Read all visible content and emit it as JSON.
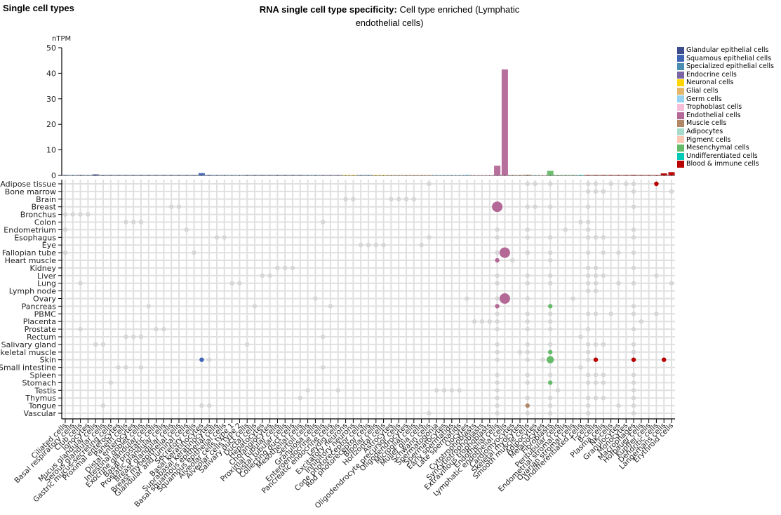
{
  "section_title": "Single cell types",
  "title": {
    "bold": "RNA single cell type specificity:",
    "rest": "Cell type enriched (Lymphatic endothelial cells)"
  },
  "legend": [
    {
      "label": "Glandular epithelial cells",
      "color": "#3d4b8f"
    },
    {
      "label": "Squamous epithelial cells",
      "color": "#3f65b4"
    },
    {
      "label": "Specialized epithelial cells",
      "color": "#4a8eb4"
    },
    {
      "label": "Endocrine cells",
      "color": "#7a66a6"
    },
    {
      "label": "Neuronal cells",
      "color": "#ffd500"
    },
    {
      "label": "Glial cells",
      "color": "#e3b66a"
    },
    {
      "label": "Germ cells",
      "color": "#96d3f2"
    },
    {
      "label": "Trophoblast cells",
      "color": "#f6bed8"
    },
    {
      "label": "Endothelial cells",
      "color": "#b36896"
    },
    {
      "label": "Muscle cells",
      "color": "#b08867"
    },
    {
      "label": "Adipocytes",
      "color": "#a7dbcb"
    },
    {
      "label": "Pigment cells",
      "color": "#fcc8b4"
    },
    {
      "label": "Mesenchymal cells",
      "color": "#66bb6a"
    },
    {
      "label": "Undifferentiated cells",
      "color": "#00c9b7"
    },
    {
      "label": "Blood & immune cells",
      "color": "#b80000"
    }
  ],
  "chart_data": {
    "type": "bar",
    "title": "RNA single cell type specificity: Cell type enriched (Lymphatic endothelial cells)",
    "ylabel": "nTPM",
    "ylim": [
      0,
      50
    ],
    "yticks": [
      0,
      10,
      20,
      30,
      40,
      50
    ],
    "categories": [
      "Ciliated cells",
      "Basal respiratory cells",
      "Club cells",
      "Ionocytes",
      "Mucus glandular cells",
      "Serous glandular cells",
      "Gastric mucus-secreting cells",
      "Proximal enterocytes",
      "Paneth cells",
      "Distal enterocytes",
      "Intestinal goblet cells",
      "Exocrine glandular cells",
      "Basal prostatic cells",
      "Prostatic glandular cells",
      "Breast glandular cells",
      "Breast myoepithelial cells",
      "Glandular and luminal cells",
      "Secretory cells",
      "Basal keratinocytes",
      "Suprabasal keratinocytes",
      "Basal squamous epithelial cells",
      "Squamous epithelial cells",
      "Alveolar cells type 1",
      "Alveolar cells type 2",
      "Salivary duct cells",
      "Ductal cells",
      "Hepatocytes",
      "Cholangiocytes",
      "Proximal tubular cells",
      "Distal tubular cells",
      "Collecting duct cells",
      "Mesothelial cells",
      "Sertoli cells",
      "Granulosa cells",
      "Enteroendocrine cells",
      "Pancreatic endocrine cells",
      "Leydig cells",
      "Excitatory neurons",
      "Inhibitory neurons",
      "Cone photoreceptor cells",
      "Rod photoreceptor cells",
      "Bipolar cells",
      "Horizontal cells",
      "Astrocytes",
      "Oligodendrocyte precursor cells",
      "Oligodendrocytes",
      "Microglial cells",
      "Muller glia cells",
      "Schwann cells",
      "Spermatogonia",
      "Spermatocytes",
      "Early spermatids",
      "Late spermatids",
      "Oocytes",
      "Cytotrophoblasts",
      "Syncytiotrophoblasts",
      "Extravillous trophoblasts",
      "Endothelial cells",
      "Lymphatic endothelial cells",
      "Cardiomyocytes",
      "Skeletal myocytes",
      "Smooth muscle cells",
      "Adipocytes",
      "Melanocytes",
      "Fibroblasts",
      "Peritubular cells",
      "Endometrial stromal cells",
      "Ovarian stromal cells",
      "Undifferentiated cells",
      "T-cells",
      "B-cells",
      "Plasma cells",
      "NK-cells",
      "Granulocytes",
      "Monocytes",
      "Macrophages",
      "Hofbauer cells",
      "Kupffer cells",
      "Dendritic cells",
      "Langerhans cells",
      "Erythroid cells"
    ],
    "values": [
      0.1,
      0.1,
      0.1,
      0.1,
      0.4,
      0.1,
      0.1,
      0.1,
      0.1,
      0.1,
      0.1,
      0.1,
      0.1,
      0.1,
      0.1,
      0.1,
      0.1,
      0.1,
      0.9,
      0.2,
      0.1,
      0.1,
      0.1,
      0.1,
      0.1,
      0.1,
      0.1,
      0.1,
      0.1,
      0.1,
      0.1,
      0.1,
      0.1,
      0.1,
      0.1,
      0.1,
      0.1,
      0.1,
      0.1,
      0.1,
      0.1,
      0.1,
      0.1,
      0.1,
      0.1,
      0.1,
      0.1,
      0.1,
      0.1,
      0.1,
      0.1,
      0.1,
      0.1,
      0.3,
      0.1,
      0.1,
      0.2,
      3.8,
      41.5,
      0.1,
      0.1,
      0.3,
      0.2,
      0.1,
      1.8,
      0.1,
      0.1,
      0.1,
      0.1,
      0.1,
      0.1,
      0.1,
      0.1,
      0.1,
      0.1,
      0.2,
      0.1,
      0.1,
      0.1,
      0.8,
      1.3
    ],
    "category_groups": [
      0,
      2,
      0,
      2,
      0,
      0,
      0,
      0,
      0,
      0,
      0,
      0,
      0,
      0,
      0,
      0,
      0,
      0,
      1,
      1,
      1,
      1,
      2,
      2,
      0,
      0,
      0,
      0,
      0,
      0,
      0,
      0,
      2,
      2,
      3,
      3,
      3,
      4,
      4,
      2,
      2,
      4,
      4,
      5,
      5,
      5,
      5,
      5,
      5,
      6,
      6,
      6,
      6,
      6,
      7,
      7,
      7,
      8,
      8,
      9,
      9,
      9,
      10,
      11,
      12,
      12,
      12,
      12,
      13,
      14,
      14,
      14,
      14,
      14,
      14,
      14,
      14,
      14,
      14,
      14,
      14
    ],
    "dot_matrix": {
      "rows": [
        "Adipose tissue",
        "Bone marrow",
        "Brain",
        "Breast",
        "Bronchus",
        "Colon",
        "Endometrium",
        "Esophagus",
        "Eye",
        "Fallopian tube",
        "Heart muscle",
        "Kidney",
        "Liver",
        "Lung",
        "Lymph node",
        "Ovary",
        "Pancreas",
        "PBMC",
        "Placenta",
        "Prostate",
        "Rectum",
        "Salivary gland",
        "Skeletal muscle",
        "Skin",
        "Small intestine",
        "Spleen",
        "Stomach",
        "Testis",
        "Thymus",
        "Tongue",
        "Vascular"
      ],
      "highlighted_points": [
        {
          "row": "Breast",
          "col": "Endothelial cells",
          "size": "large",
          "color": "#b36896"
        },
        {
          "row": "Fallopian tube",
          "col": "Lymphatic endothelial cells",
          "size": "large",
          "color": "#b36896"
        },
        {
          "row": "Heart muscle",
          "col": "Endothelial cells",
          "size": "small",
          "color": "#b36896"
        },
        {
          "row": "Ovary",
          "col": "Lymphatic endothelial cells",
          "size": "large",
          "color": "#b36896"
        },
        {
          "row": "Pancreas",
          "col": "Endothelial cells",
          "size": "small",
          "color": "#b36896"
        },
        {
          "row": "Pancreas",
          "col": "Fibroblasts",
          "size": "small",
          "color": "#66bb6a"
        },
        {
          "row": "Skeletal muscle",
          "col": "Fibroblasts",
          "size": "small",
          "color": "#66bb6a"
        },
        {
          "row": "Skin",
          "col": "Basal keratinocytes",
          "size": "small",
          "color": "#3f65b4"
        },
        {
          "row": "Skin",
          "col": "Fibroblasts",
          "size": "medium",
          "color": "#66bb6a"
        },
        {
          "row": "Skin",
          "col": "B-cells",
          "size": "small",
          "color": "#b80000"
        },
        {
          "row": "Skin",
          "col": "Macrophages",
          "size": "small",
          "color": "#b80000"
        },
        {
          "row": "Skin",
          "col": "Langerhans cells",
          "size": "small",
          "color": "#b80000"
        },
        {
          "row": "Stomach",
          "col": "Fibroblasts",
          "size": "small",
          "color": "#66bb6a"
        },
        {
          "row": "Tongue",
          "col": "Smooth muscle cells",
          "size": "small",
          "color": "#b08867"
        },
        {
          "row": "Adipose tissue",
          "col": "Dendritic cells",
          "size": "small",
          "color": "#b80000"
        }
      ],
      "gray_points": [
        [
          0,
          48
        ],
        [
          0,
          61
        ],
        [
          0,
          62
        ],
        [
          0,
          64
        ],
        [
          0,
          69
        ],
        [
          0,
          70
        ],
        [
          0,
          72
        ],
        [
          0,
          74
        ],
        [
          0,
          75
        ],
        [
          1,
          69
        ],
        [
          1,
          70
        ],
        [
          1,
          71
        ],
        [
          1,
          75
        ],
        [
          1,
          80
        ],
        [
          2,
          37
        ],
        [
          2,
          38
        ],
        [
          2,
          43
        ],
        [
          2,
          44
        ],
        [
          2,
          45
        ],
        [
          2,
          46
        ],
        [
          3,
          14
        ],
        [
          3,
          15
        ],
        [
          3,
          61
        ],
        [
          3,
          62
        ],
        [
          3,
          64
        ],
        [
          3,
          69
        ],
        [
          3,
          75
        ],
        [
          4,
          0
        ],
        [
          4,
          1
        ],
        [
          4,
          2
        ],
        [
          4,
          3
        ],
        [
          5,
          8
        ],
        [
          5,
          9
        ],
        [
          5,
          10
        ],
        [
          5,
          34
        ],
        [
          5,
          68
        ],
        [
          5,
          69
        ],
        [
          6,
          0
        ],
        [
          6,
          16
        ],
        [
          6,
          57
        ],
        [
          6,
          61
        ],
        [
          6,
          66
        ],
        [
          6,
          69
        ],
        [
          6,
          75
        ],
        [
          7,
          20
        ],
        [
          7,
          21
        ],
        [
          7,
          48
        ],
        [
          7,
          57
        ],
        [
          7,
          61
        ],
        [
          7,
          64
        ],
        [
          7,
          69
        ],
        [
          7,
          70
        ],
        [
          7,
          71
        ],
        [
          7,
          75
        ],
        [
          8,
          39
        ],
        [
          8,
          40
        ],
        [
          8,
          41
        ],
        [
          8,
          42
        ],
        [
          8,
          47
        ],
        [
          9,
          0
        ],
        [
          9,
          17
        ],
        [
          9,
          57
        ],
        [
          9,
          61
        ],
        [
          9,
          64
        ],
        [
          9,
          69
        ],
        [
          9,
          71
        ],
        [
          9,
          73
        ],
        [
          9,
          75
        ],
        [
          10,
          59
        ],
        [
          10,
          64
        ],
        [
          11,
          28
        ],
        [
          11,
          29
        ],
        [
          11,
          30
        ],
        [
          11,
          69
        ],
        [
          11,
          70
        ],
        [
          11,
          75
        ],
        [
          12,
          26
        ],
        [
          12,
          27
        ],
        [
          12,
          57
        ],
        [
          12,
          61
        ],
        [
          12,
          64
        ],
        [
          12,
          69
        ],
        [
          12,
          70
        ],
        [
          12,
          71
        ],
        [
          12,
          78
        ],
        [
          13,
          2
        ],
        [
          13,
          22
        ],
        [
          13,
          23
        ],
        [
          13,
          57
        ],
        [
          13,
          61
        ],
        [
          13,
          64
        ],
        [
          13,
          69
        ],
        [
          13,
          70
        ],
        [
          13,
          73
        ],
        [
          13,
          75
        ],
        [
          13,
          80
        ],
        [
          14,
          69
        ],
        [
          14,
          70
        ],
        [
          15,
          33
        ],
        [
          15,
          53
        ],
        [
          15,
          57
        ],
        [
          15,
          61
        ],
        [
          15,
          67
        ],
        [
          16,
          11
        ],
        [
          16,
          25
        ],
        [
          16,
          35
        ],
        [
          16,
          75
        ],
        [
          17,
          57
        ],
        [
          17,
          61
        ],
        [
          17,
          64
        ],
        [
          17,
          69
        ],
        [
          17,
          70
        ],
        [
          17,
          72
        ],
        [
          17,
          75
        ],
        [
          17,
          78
        ],
        [
          18,
          54
        ],
        [
          18,
          55
        ],
        [
          18,
          56
        ],
        [
          18,
          57
        ],
        [
          18,
          61
        ],
        [
          18,
          64
        ],
        [
          18,
          76
        ],
        [
          19,
          2
        ],
        [
          19,
          12
        ],
        [
          19,
          13
        ],
        [
          19,
          57
        ],
        [
          19,
          61
        ],
        [
          19,
          64
        ],
        [
          19,
          69
        ],
        [
          19,
          75
        ],
        [
          20,
          8
        ],
        [
          20,
          9
        ],
        [
          20,
          10
        ],
        [
          20,
          34
        ],
        [
          20,
          68
        ],
        [
          21,
          4
        ],
        [
          21,
          5
        ],
        [
          21,
          24
        ],
        [
          21,
          57
        ],
        [
          21,
          61
        ],
        [
          21,
          64
        ],
        [
          21,
          69
        ],
        [
          21,
          70
        ],
        [
          21,
          71
        ],
        [
          21,
          75
        ],
        [
          22,
          57
        ],
        [
          22,
          60
        ],
        [
          22,
          61
        ],
        [
          22,
          69
        ],
        [
          22,
          75
        ],
        [
          23,
          19
        ],
        [
          23,
          57
        ],
        [
          23,
          61
        ],
        [
          23,
          63
        ],
        [
          23,
          69
        ],
        [
          24,
          7
        ],
        [
          24,
          8
        ],
        [
          24,
          10
        ],
        [
          24,
          34
        ],
        [
          24,
          68
        ],
        [
          25,
          57
        ],
        [
          25,
          61
        ],
        [
          25,
          64
        ],
        [
          25,
          69
        ],
        [
          25,
          70
        ],
        [
          25,
          71
        ],
        [
          25,
          75
        ],
        [
          26,
          6
        ],
        [
          26,
          57
        ],
        [
          26,
          61
        ],
        [
          26,
          69
        ],
        [
          26,
          70
        ],
        [
          26,
          71
        ],
        [
          26,
          75
        ],
        [
          27,
          32
        ],
        [
          27,
          36
        ],
        [
          27,
          49
        ],
        [
          27,
          50
        ],
        [
          27,
          51
        ],
        [
          27,
          52
        ],
        [
          27,
          57
        ],
        [
          27,
          65
        ],
        [
          27,
          75
        ],
        [
          28,
          31
        ],
        [
          28,
          57
        ],
        [
          28,
          61
        ],
        [
          28,
          64
        ],
        [
          28,
          69
        ],
        [
          28,
          70
        ],
        [
          28,
          71
        ],
        [
          28,
          75
        ],
        [
          29,
          5
        ],
        [
          29,
          18
        ],
        [
          29,
          19
        ],
        [
          29,
          57
        ],
        [
          29,
          64
        ],
        [
          29,
          69
        ],
        [
          29,
          73
        ],
        [
          29,
          75
        ],
        [
          30,
          48
        ],
        [
          30,
          57
        ],
        [
          30,
          61
        ],
        [
          30,
          64
        ],
        [
          30,
          69
        ],
        [
          30,
          75
        ]
      ]
    }
  }
}
